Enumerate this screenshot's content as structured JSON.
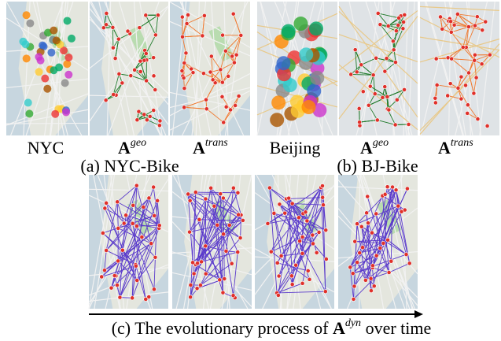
{
  "panels": [
    {
      "caption": "(a) NYC-Bike",
      "labels": [
        {
          "text": "NYC"
        },
        {
          "base": "A",
          "sup": "geo"
        },
        {
          "base": "A",
          "sup": "trans"
        }
      ]
    },
    {
      "caption": "(b) BJ-Bike",
      "labels": [
        {
          "text": "Beijing"
        },
        {
          "base": "A",
          "sup": "geo"
        },
        {
          "base": "A",
          "sup": "trans"
        }
      ]
    }
  ],
  "bottom": {
    "caption_pre": "(c) The evolutionary process of ",
    "caption_base": "A",
    "caption_sup": "dyn",
    "caption_post": " over time"
  }
}
